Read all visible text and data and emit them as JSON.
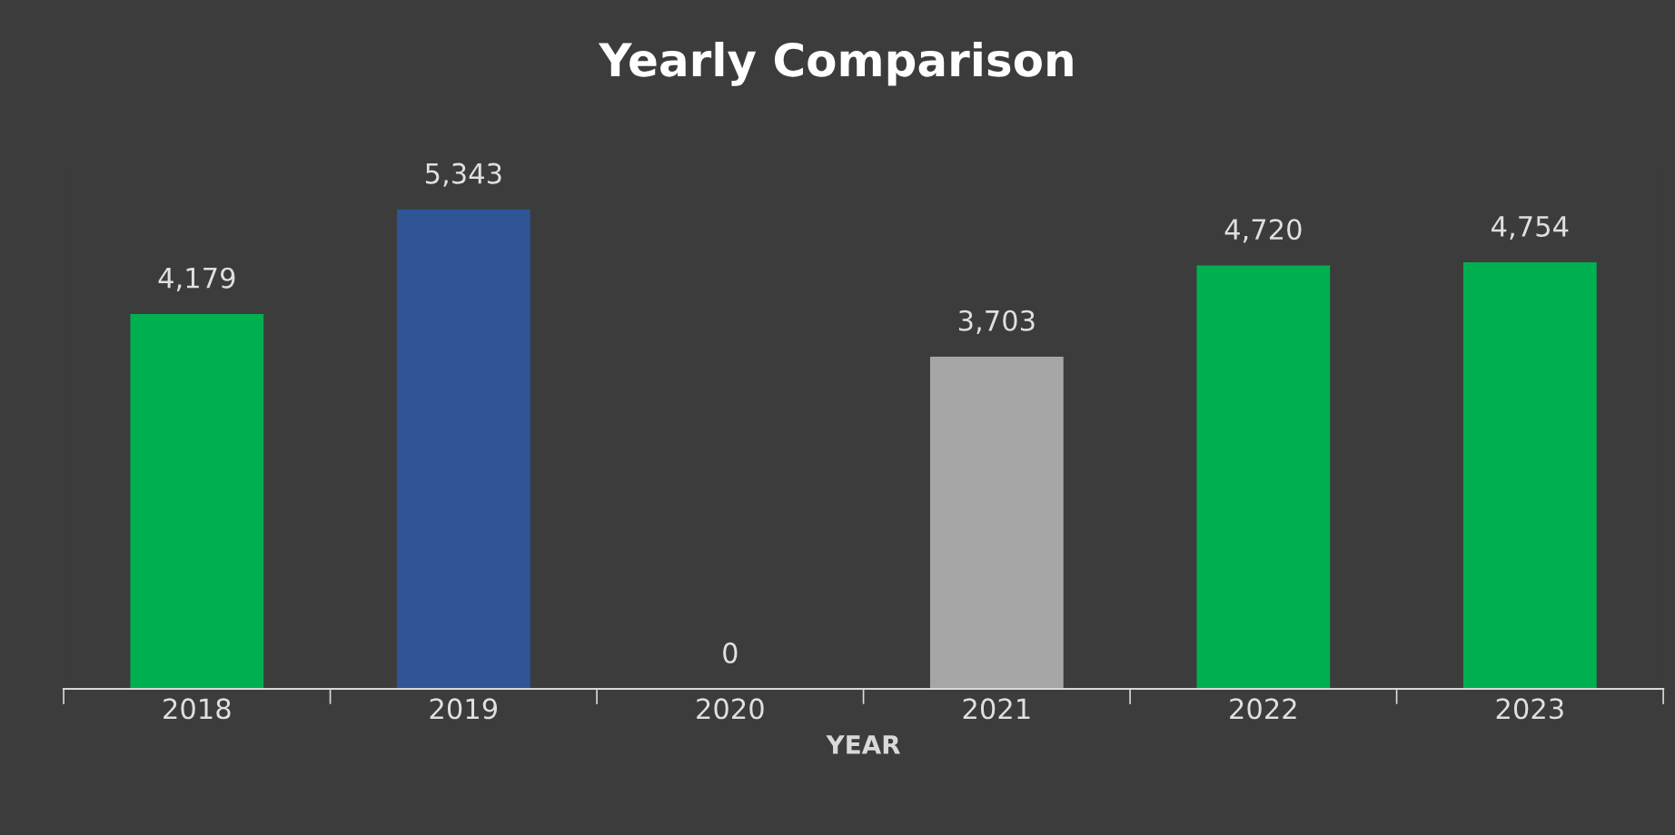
{
  "chart_data": {
    "type": "bar",
    "title": "Yearly Comparison",
    "xlabel": "YEAR",
    "categories": [
      "2018",
      "2019",
      "2020",
      "2021",
      "2022",
      "2023"
    ],
    "values": [
      4179,
      5343,
      0,
      3703,
      4720,
      4754
    ],
    "colors": [
      "#00b050",
      "#2f5597",
      "#00b050",
      "#a6a6a6",
      "#00b050",
      "#00b050"
    ],
    "value_labels": [
      "4,179",
      "5,343",
      "0",
      "3,703",
      "4,720",
      "4,754"
    ],
    "grid": false,
    "legend": false
  }
}
